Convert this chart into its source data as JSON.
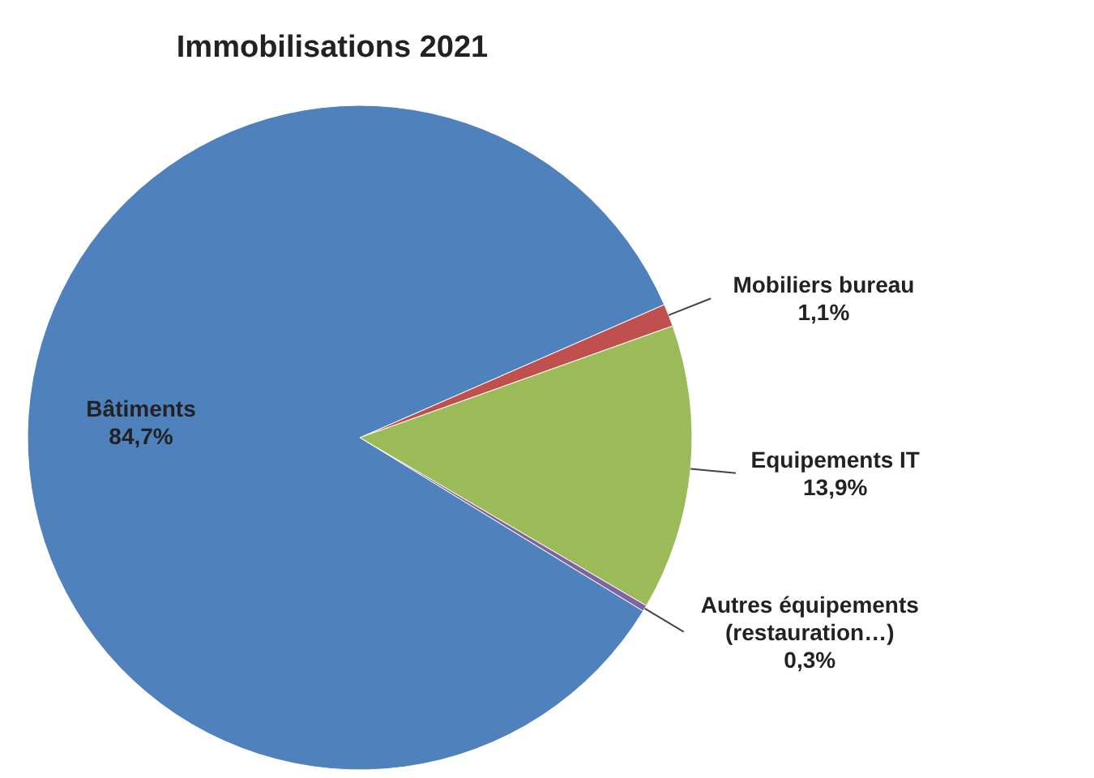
{
  "chart_data": {
    "type": "pie",
    "title": "Immobilisations 2021",
    "categories": [
      "Mobiliers bureau",
      "Equipements IT",
      "Autres équipements\n(restauration…)",
      "Bâtiments"
    ],
    "values": [
      1.1,
      13.9,
      0.3,
      84.7
    ],
    "colors": [
      "#c0504d",
      "#9bbb59",
      "#8064a2",
      "#4f81bd"
    ],
    "value_labels": [
      "1,1%",
      "13,9%",
      "0,3%",
      "84,7%"
    ]
  }
}
